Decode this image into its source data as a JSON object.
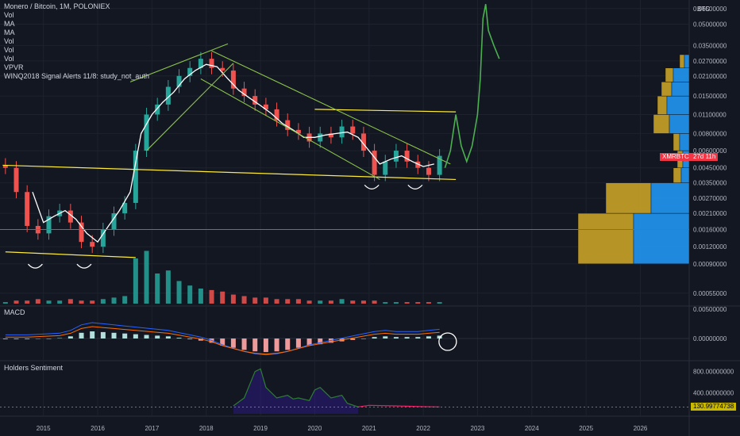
{
  "legend": {
    "title": "Monero / Bitcoin, 1M, POLONIEX",
    "indicators": [
      "Vol",
      "MA",
      "MA",
      "Vol",
      "Vol",
      "Vol",
      "VPVR",
      "WINQ2018 Signal Alerts 11/8: study_not_auth"
    ]
  },
  "panes": {
    "macd_label": "MACD",
    "sentiment_label": "Holders Sentiment"
  },
  "price_axis": {
    "currency": "BTC",
    "ticks": [
      "0.06500000",
      "0.05000000",
      "0.03500000",
      "0.02700000",
      "0.02100000",
      "0.01500000",
      "0.01100000",
      "0.00800000",
      "0.00600000",
      "0.00450000",
      "0.00350000",
      "0.00270000",
      "0.00210000",
      "0.00160000",
      "0.00120000",
      "0.00090000",
      "0.00055000"
    ],
    "symbol_badge": "XMRBTC",
    "countdown_badge": "27d 11h"
  },
  "macd_axis": {
    "ticks": [
      "0.00500000",
      "0.00000000"
    ]
  },
  "sentiment_axis": {
    "ticks": [
      "800.00000000",
      "400.00000000"
    ],
    "current": "130.99774738"
  },
  "time_axis": {
    "ticks": [
      "2015",
      "2016",
      "2017",
      "2018",
      "2019",
      "2020",
      "2021",
      "2022",
      "2023",
      "2024",
      "2025",
      "2026"
    ]
  },
  "colors": {
    "up": "#26a69a",
    "down": "#ef5350",
    "trend": "#ffeb3b",
    "channel": "#8bc34a",
    "projection": "#4caf50",
    "ma": "#ffffff",
    "hline": "#f23645",
    "vpvr_up": "#2196f3",
    "vpvr_down": "#c9a227"
  },
  "chart_data": {
    "type": "candlestick",
    "price_series": {
      "name": "XMRBTC",
      "x": [
        2014.3,
        2014.5,
        2014.7,
        2014.9,
        2015.1,
        2015.3,
        2015.5,
        2015.7,
        2015.9,
        2016.1,
        2016.3,
        2016.5,
        2016.7,
        2016.9,
        2017.1,
        2017.3,
        2017.5,
        2017.7,
        2017.9,
        2018.1,
        2018.3,
        2018.5,
        2018.7,
        2018.9,
        2019.1,
        2019.3,
        2019.5,
        2019.7,
        2019.9,
        2020.1,
        2020.3,
        2020.5,
        2020.7,
        2020.9,
        2021.1,
        2021.3,
        2021.5,
        2021.7,
        2021.9,
        2022.1,
        2022.3
      ],
      "close": [
        0.0045,
        0.003,
        0.0017,
        0.0015,
        0.002,
        0.0022,
        0.0018,
        0.0013,
        0.0012,
        0.0016,
        0.0021,
        0.0025,
        0.006,
        0.011,
        0.013,
        0.0175,
        0.021,
        0.024,
        0.028,
        0.024,
        0.023,
        0.017,
        0.015,
        0.013,
        0.012,
        0.01,
        0.0085,
        0.008,
        0.007,
        0.008,
        0.0075,
        0.009,
        0.008,
        0.006,
        0.004,
        0.005,
        0.006,
        0.005,
        0.0045,
        0.004,
        0.0055
      ]
    },
    "ma_series": {
      "x": [
        2014.8,
        2015.0,
        2015.2,
        2015.4,
        2015.6,
        2015.8,
        2016.0,
        2016.2,
        2016.4,
        2016.6,
        2016.8,
        2017.0,
        2017.2,
        2017.4,
        2017.6,
        2017.8,
        2018.0,
        2018.2,
        2018.4,
        2018.6,
        2018.8,
        2019.0,
        2019.2,
        2019.4,
        2019.6,
        2019.8,
        2020.0,
        2020.2,
        2020.4,
        2020.6,
        2020.8,
        2021.0,
        2021.2,
        2021.4,
        2021.6,
        2021.8,
        2022.0,
        2022.2
      ],
      "y": [
        0.003,
        0.0018,
        0.002,
        0.0022,
        0.0019,
        0.0015,
        0.0013,
        0.0017,
        0.0022,
        0.003,
        0.008,
        0.011,
        0.0135,
        0.016,
        0.02,
        0.023,
        0.0255,
        0.0245,
        0.02,
        0.0165,
        0.0145,
        0.0128,
        0.0112,
        0.0095,
        0.0085,
        0.0075,
        0.0075,
        0.0078,
        0.008,
        0.0082,
        0.0075,
        0.006,
        0.0048,
        0.0052,
        0.0055,
        0.005,
        0.0046,
        0.0048
      ]
    },
    "projection_series": {
      "x": [
        2022.4,
        2022.5,
        2022.6,
        2022.7,
        2022.8,
        2022.9,
        2023.0,
        2023.05,
        2023.1,
        2023.15,
        2023.2,
        2023.3,
        2023.4
      ],
      "y": [
        0.0045,
        0.006,
        0.011,
        0.0065,
        0.005,
        0.0065,
        0.011,
        0.02,
        0.055,
        0.07,
        0.045,
        0.035,
        0.028
      ]
    },
    "trendlines": [
      {
        "kind": "support",
        "x": [
          2014.25,
          2022.6
        ],
        "y": [
          0.0047,
          0.0037
        ]
      },
      {
        "kind": "support",
        "x": [
          2014.3,
          2016.7
        ],
        "y": [
          0.0011,
          0.001
        ]
      },
      {
        "kind": "resistance",
        "x": [
          2020.0,
          2022.6
        ],
        "y": [
          0.012,
          0.0115
        ]
      }
    ],
    "channels": [
      {
        "x": [
          2016.6,
          2018.4
        ],
        "y": [
          0.019,
          0.036
        ]
      },
      {
        "x": [
          2016.9,
          2018.5
        ],
        "y": [
          0.006,
          0.026
        ]
      },
      {
        "x": [
          2018.1,
          2022.5
        ],
        "y": [
          0.032,
          0.0048
        ]
      },
      {
        "x": [
          2017.9,
          2021.2
        ],
        "y": [
          0.02,
          0.0037
        ]
      }
    ],
    "horizontal_line": 0.0016,
    "volume": [
      1,
      2,
      2,
      3,
      2,
      2,
      3,
      2,
      2,
      3,
      4,
      5,
      30,
      35,
      20,
      22,
      15,
      12,
      10,
      9,
      8,
      6,
      5,
      4,
      4,
      3,
      3,
      3,
      2,
      2,
      2,
      3,
      2,
      2,
      2,
      1,
      1,
      1,
      1,
      1,
      1
    ],
    "macd": [
      -0.1,
      -0.1,
      -0.1,
      -0.05,
      0,
      0.05,
      0.3,
      0.8,
      1.0,
      0.9,
      0.8,
      0.7,
      0.6,
      0.5,
      0.4,
      0.3,
      0.1,
      -0.1,
      -0.3,
      -0.6,
      -1.0,
      -1.3,
      -1.6,
      -1.8,
      -1.9,
      -1.8,
      -1.6,
      -1.3,
      -1.0,
      -0.8,
      -0.6,
      -0.4,
      -0.2,
      0.0,
      0.2,
      0.3,
      0.2,
      0.2,
      0.2,
      0.3,
      0.4
    ],
    "sentiment": {
      "x": [
        2018.5,
        2018.7,
        2018.9,
        2019.0,
        2019.1,
        2019.3,
        2019.5,
        2019.6,
        2019.7,
        2019.9,
        2020.0,
        2020.1,
        2020.3,
        2020.5,
        2020.6,
        2020.8,
        2021.0,
        2021.5,
        2022.0,
        2022.3
      ],
      "y": [
        150,
        300,
        800,
        850,
        500,
        300,
        350,
        280,
        300,
        250,
        450,
        500,
        300,
        350,
        200,
        130,
        160,
        150,
        135,
        130
      ]
    }
  }
}
